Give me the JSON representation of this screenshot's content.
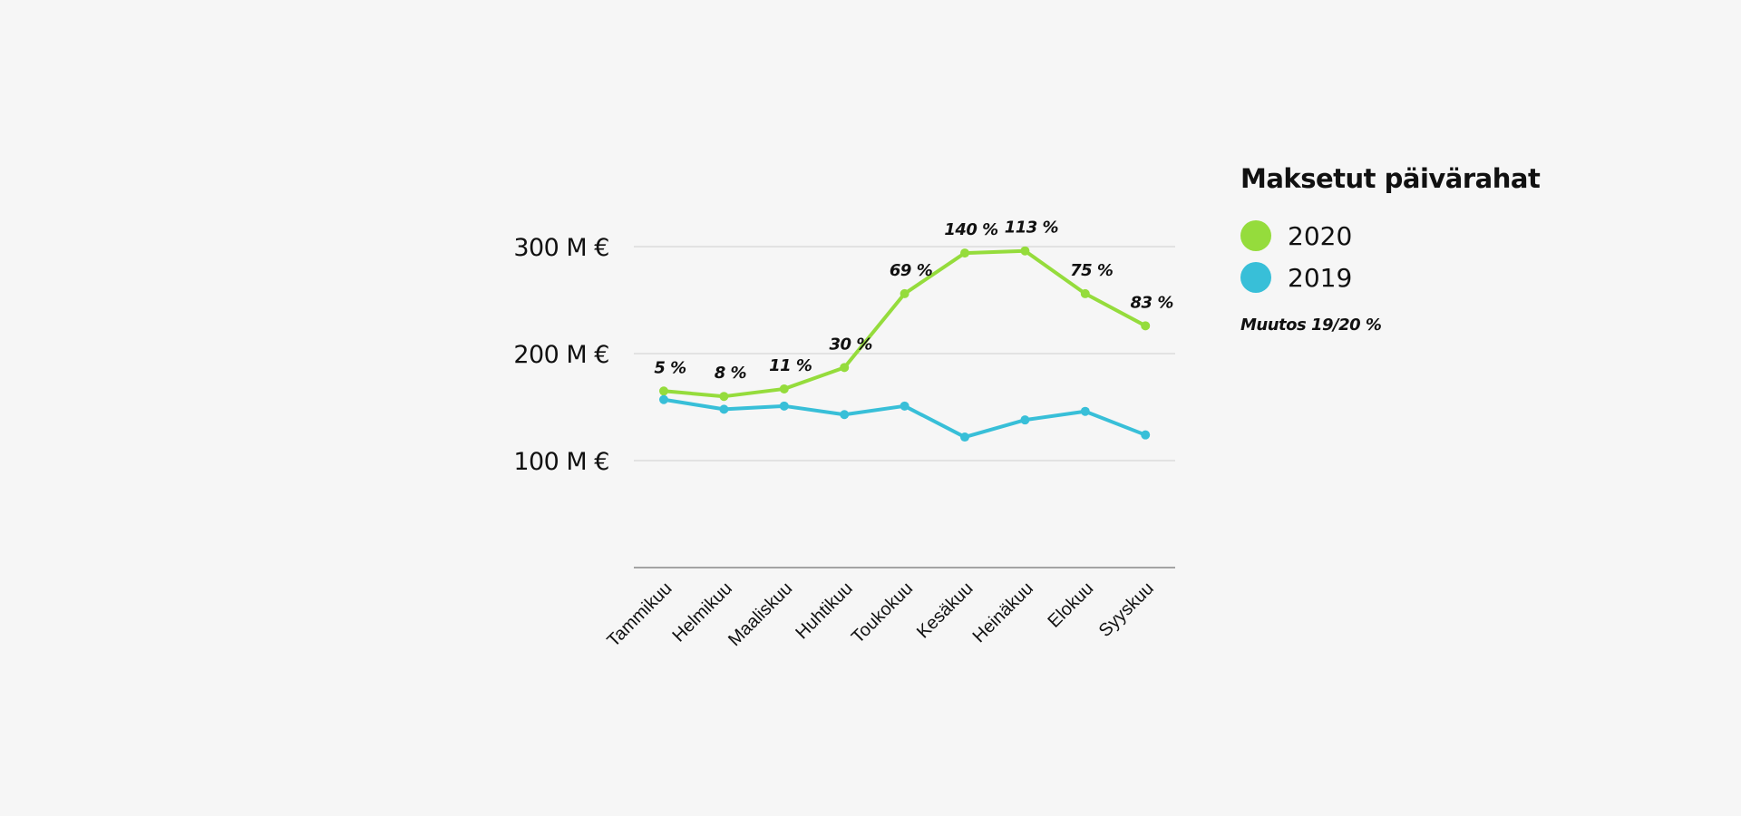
{
  "chart_data": {
    "type": "line",
    "categories": [
      "Tammikuu",
      "Helmikuu",
      "Maaliskuu",
      "Huhtikuu",
      "Toukokuu",
      "Kesäkuu",
      "Heinäkuu",
      "Elokuu",
      "Syyskuu"
    ],
    "series": [
      {
        "name": "2020",
        "color": "#95dc3c",
        "values": [
          165,
          160,
          167,
          187,
          256,
          294,
          296,
          256,
          226
        ]
      },
      {
        "name": "2019",
        "color": "#38bfd8",
        "values": [
          157,
          148,
          151,
          143,
          151,
          122,
          138,
          146,
          124
        ]
      }
    ],
    "change_labels": [
      "5 %",
      "8 %",
      "11 %",
      "30 %",
      "69 %",
      "140 %",
      "113 %",
      "75 %",
      "83 %"
    ],
    "y_ticks": [
      {
        "value": 100,
        "label": "100 M €"
      },
      {
        "value": 200,
        "label": "200 M €"
      },
      {
        "value": 300,
        "label": "300 M €"
      }
    ],
    "ylim": [
      0,
      300
    ],
    "grid": true,
    "legend_placement": "right"
  },
  "legend": {
    "title": "Maksetut päivärahat",
    "items": [
      {
        "label": "2020",
        "color": "#95dc3c"
      },
      {
        "label": "2019",
        "color": "#38bfd8"
      }
    ],
    "note": "Muutos 19/20 %"
  }
}
